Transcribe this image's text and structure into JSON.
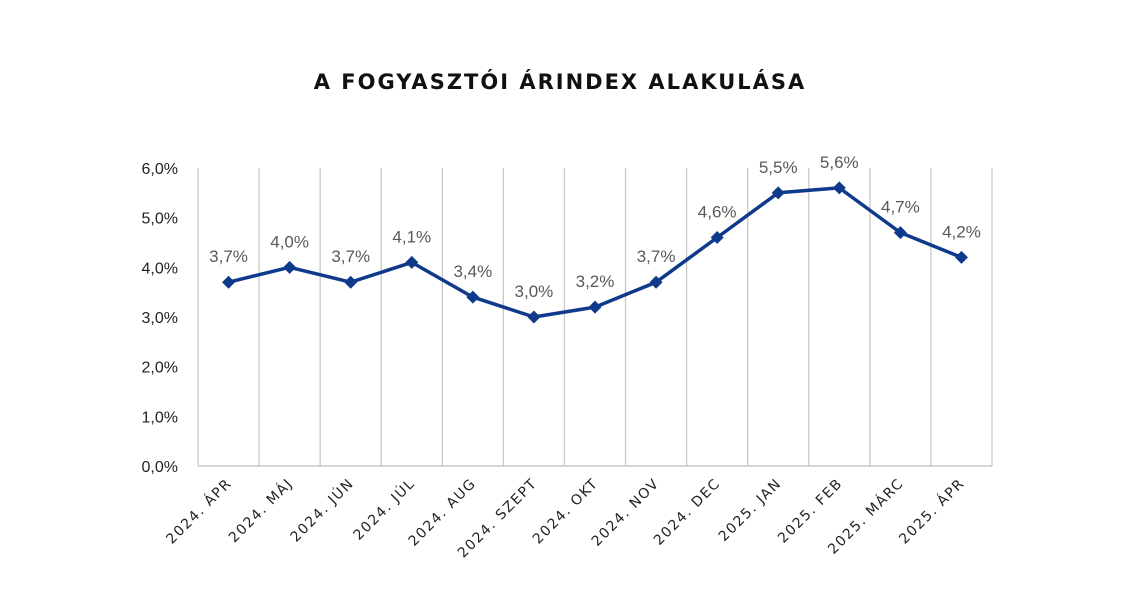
{
  "chart_data": {
    "type": "line",
    "title": "A FOGYASZTÓI ÁRINDEX ALAKULÁSA",
    "categories": [
      "2024. ÁPR",
      "2024. MÁJ",
      "2024. JÚN",
      "2024. JÚL",
      "2024. AUG",
      "2024. SZEPT",
      "2024. OKT",
      "2024. NOV",
      "2024. DEC",
      "2025. JAN",
      "2025. FEB",
      "2025. MÁRC",
      "2025. ÁPR"
    ],
    "series": [
      {
        "values": [
          3.7,
          4.0,
          3.7,
          4.1,
          3.4,
          3.0,
          3.2,
          3.7,
          4.6,
          5.5,
          5.6,
          4.7,
          4.2
        ],
        "labels": [
          "3,7%",
          "4,0%",
          "3,7%",
          "4,1%",
          "3,4%",
          "3,0%",
          "3,2%",
          "3,7%",
          "4,6%",
          "5,5%",
          "5,6%",
          "4,7%",
          "4,2%"
        ],
        "color": "#0f3a8c",
        "marker": "diamond"
      }
    ],
    "y_ticks": [
      0,
      1,
      2,
      3,
      4,
      5,
      6
    ],
    "y_tick_labels": [
      "0,0%",
      "1,0%",
      "2,0%",
      "3,0%",
      "4,0%",
      "5,0%",
      "6,0%"
    ],
    "ylim": [
      0,
      6
    ],
    "xlabel": "",
    "ylabel": "",
    "grid": "vertical",
    "legend": "none"
  }
}
